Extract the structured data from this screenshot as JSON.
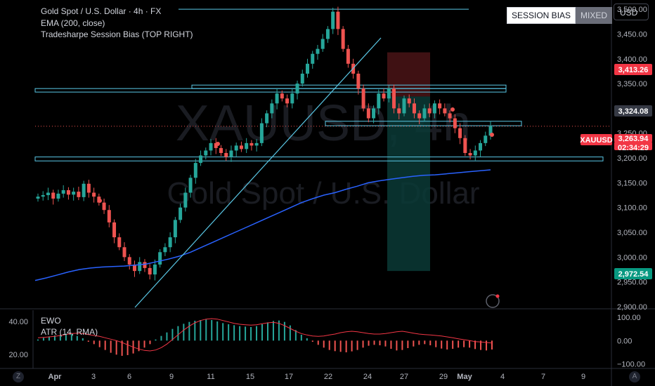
{
  "header": {
    "symbol_title": "Gold Spot / U.S. Dollar · 4h · FX",
    "indicator1": "EMA (200, close)",
    "indicator2": "Tradesharpe Session Bias (TOP RIGHT)"
  },
  "session_bias": {
    "label": "SESSION BIAS",
    "value": "MIXED"
  },
  "currency_button": "USD",
  "watermark": {
    "ticker": "XAUUSD, 4h",
    "name": "Gold Spot / U.S. Dollar"
  },
  "lower_pane": {
    "indicator1": "EWO",
    "indicator2": "ATR (14, RMA)"
  },
  "corner_left": "Z",
  "corner_right": "A",
  "colors": {
    "up": "#26a69a",
    "down": "#ef5350",
    "ema": "#2962ff",
    "zone": "#5ac8e6",
    "price_badge": "#f23645",
    "bg": "#000000"
  },
  "chart_data": [
    {
      "type": "candlestick",
      "title": "Gold Spot / U.S. Dollar · 4h · FX",
      "ylim": [
        2900,
        3520
      ],
      "y_ticks": [
        2900,
        2950,
        3000,
        3050,
        3100,
        3150,
        3200,
        3250,
        3300,
        3350,
        3400,
        3450,
        3500
      ],
      "y_tick_labels": [
        "2,900.00",
        "2,950.00",
        "3,000.00",
        "3,050.00",
        "3,100.00",
        "3,150.00",
        "3,200.00",
        "3,250.00",
        "3,300.00",
        "3,350.00",
        "3,400.00",
        "3,450.00",
        "3,500.00"
      ],
      "x_tick_labels": [
        "Apr",
        "3",
        "6",
        "9",
        "11",
        "15",
        "17",
        "22",
        "24",
        "27",
        "29",
        "May",
        "4",
        "7",
        "9"
      ],
      "price_labels": [
        {
          "text": "3,413.26",
          "value": 3413.26,
          "color": "#f23645"
        },
        {
          "text": "3,324.08",
          "value": 3324.08,
          "color": "#363a45"
        },
        {
          "text": "XAUUSD",
          "value": 3263.94,
          "color": "#f23645"
        },
        {
          "text": "3,263.94",
          "value": 3263.94,
          "color": "#f23645"
        },
        {
          "text": "02:34:29",
          "value": 3263.94,
          "color": "#f23645"
        },
        {
          "text": "2,972.54",
          "value": 2972.54,
          "color": "#089981"
        }
      ],
      "ema_200": [
        2953,
        2958,
        2964,
        2970,
        2975,
        2978,
        2980,
        2981,
        2982,
        2984,
        2986,
        2991,
        2996,
        3002,
        3010,
        3020,
        3030,
        3040,
        3050,
        3060,
        3070,
        3080,
        3090,
        3100,
        3110,
        3118,
        3125,
        3130,
        3137,
        3143,
        3150,
        3154,
        3157,
        3160,
        3163,
        3165,
        3166,
        3168,
        3170,
        3172,
        3174,
        3176
      ],
      "closes": [
        3122,
        3125,
        3130,
        3118,
        3128,
        3135,
        3126,
        3132,
        3121,
        3148,
        3130,
        3122,
        3110,
        3095,
        3070,
        3040,
        3020,
        3000,
        2985,
        2972,
        2990,
        2978,
        2965,
        2985,
        3010,
        3020,
        3040,
        3075,
        3100,
        3130,
        3160,
        3190,
        3205,
        3215,
        3230,
        3220,
        3210,
        3202,
        3215,
        3225,
        3218,
        3230,
        3225,
        3230,
        3270,
        3290,
        3310,
        3330,
        3320,
        3310,
        3330,
        3350,
        3370,
        3390,
        3410,
        3420,
        3440,
        3460,
        3495,
        3460,
        3420,
        3390,
        3370,
        3340,
        3300,
        3280,
        3300,
        3330,
        3320,
        3340,
        3300,
        3290,
        3320,
        3310,
        3290,
        3280,
        3300,
        3290,
        3310,
        3300,
        3290,
        3280,
        3260,
        3240,
        3210,
        3205,
        3215,
        3230,
        3245,
        3263.94
      ],
      "annotations": {
        "resistance_zones": [
          {
            "from": 3335,
            "to": 3340,
            "label": ""
          },
          {
            "from": 3265,
            "to": 3274,
            "label": ""
          },
          {
            "from": 3194,
            "to": 3202,
            "label": ""
          }
        ],
        "horizontal_line": 3500,
        "trendline": {
          "from": [
            2,
            2895
          ],
          "to": [
            40,
            3485
          ]
        },
        "risk_box": {
          "top": 3413,
          "mid": 3324,
          "bottom": 2972
        }
      }
    },
    {
      "type": "bar",
      "title": "EWO",
      "left_axis_labels": [
        "40.00",
        "20.00"
      ],
      "right_axis_labels": [
        "100.00",
        "0.00",
        "−100.00"
      ],
      "ylim": [
        -110,
        130
      ],
      "values": [
        5,
        12,
        18,
        22,
        25,
        30,
        28,
        20,
        10,
        -5,
        -15,
        -28,
        -40,
        -52,
        -60,
        -65,
        -62,
        -55,
        -45,
        -30,
        -15,
        5,
        20,
        35,
        50,
        62,
        72,
        80,
        85,
        88,
        90,
        88,
        82,
        75,
        70,
        66,
        62,
        60,
        58,
        62,
        70,
        78,
        84,
        86,
        80,
        65,
        45,
        25,
        10,
        -5,
        -18,
        -30,
        -40,
        -45,
        -48,
        -50,
        -46,
        -40,
        -30,
        -22,
        -18,
        -20,
        -25,
        -35,
        -42,
        -40,
        -32,
        -25,
        -18,
        -15,
        -20,
        -28,
        -34,
        -38,
        -35,
        -30,
        -28,
        -30,
        -36,
        -40,
        -42,
        -38
      ],
      "atr_line": [
        12,
        14,
        16,
        18,
        22,
        26,
        30,
        32,
        30,
        26,
        22,
        18,
        12,
        6,
        0,
        -8,
        -18,
        -28,
        -36,
        -42,
        -44,
        -40,
        -30,
        -15,
        5,
        25,
        45,
        62,
        76,
        86,
        92,
        94,
        92,
        86,
        80,
        74,
        70,
        68,
        66,
        68,
        72,
        76,
        78,
        74,
        64,
        52,
        40,
        30,
        24,
        20,
        18,
        20,
        24,
        28,
        34,
        38,
        40,
        38,
        34,
        30,
        28,
        28,
        30,
        34,
        38,
        40,
        36,
        32,
        28,
        26,
        24,
        22,
        20,
        16,
        12,
        8,
        4,
        0,
        -4,
        -6,
        -8,
        -10
      ]
    }
  ]
}
